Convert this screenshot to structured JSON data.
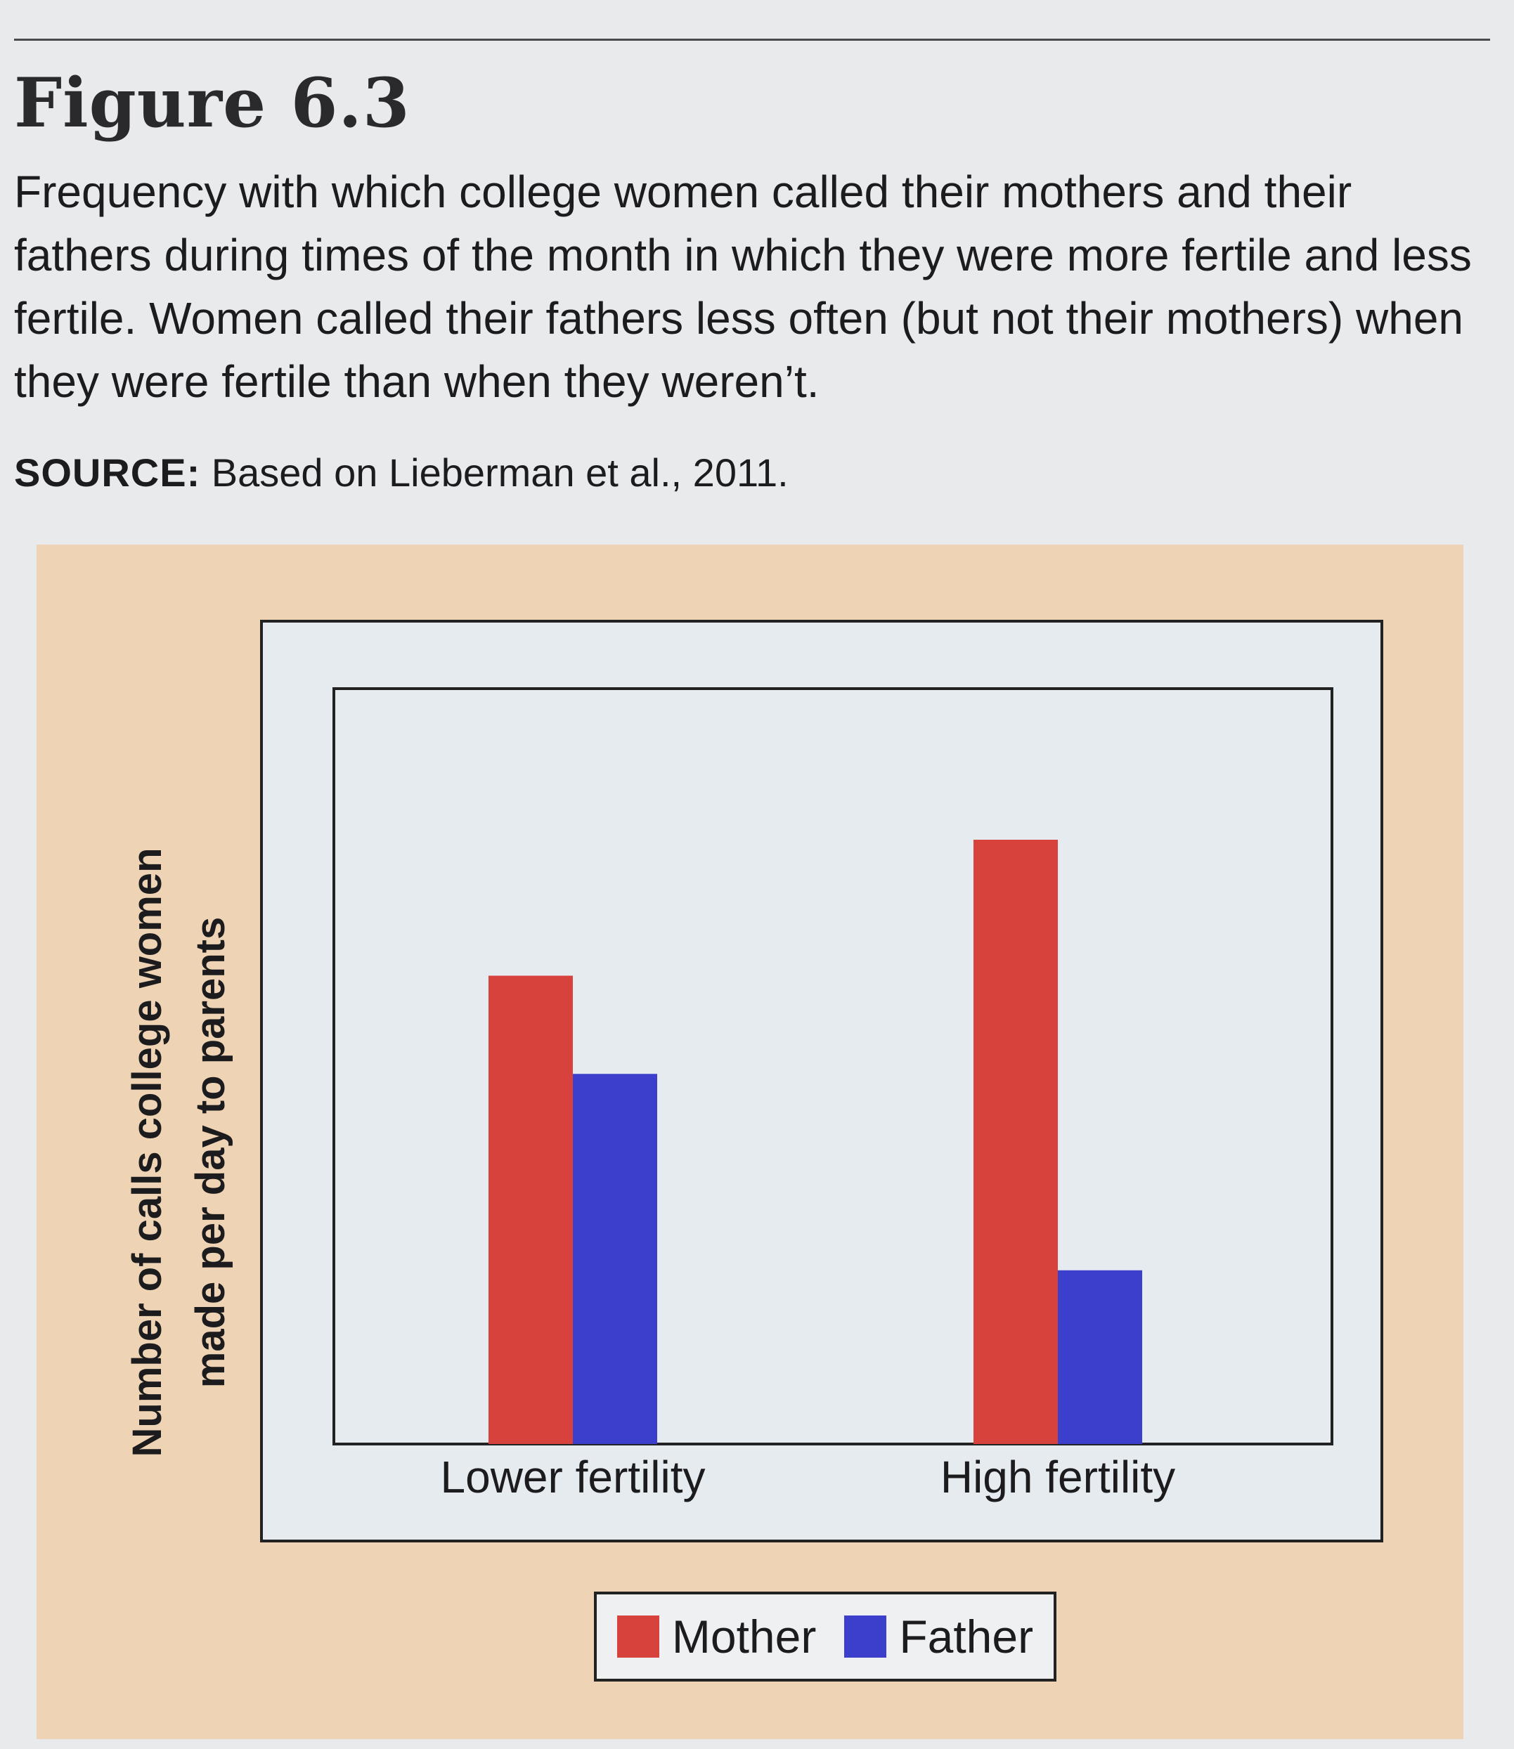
{
  "figure": {
    "number": "Figure 6.3",
    "caption": "Frequency with which college women called their mothers and their fathers during times of the month in which they were more fertile and less fertile. Women called their fathers less often (but not their mothers) when they were fertile than when they weren’t.",
    "source_label": "SOURCE:",
    "source_text": " Based on Lieberman et al., 2011."
  },
  "chart_data": {
    "type": "bar",
    "categories": [
      "Lower fertility",
      "High fertility"
    ],
    "series": [
      {
        "name": "Mother",
        "color": "#d8423c",
        "values": [
          0.62,
          0.8
        ]
      },
      {
        "name": "Father",
        "color": "#3c3fcc",
        "values": [
          0.49,
          0.23
        ]
      }
    ],
    "ylabel": "Number of calls college women made per day to parents",
    "xlabel": "",
    "ylim": [
      0,
      1
    ],
    "grid": false,
    "legend": "bottom-center"
  }
}
